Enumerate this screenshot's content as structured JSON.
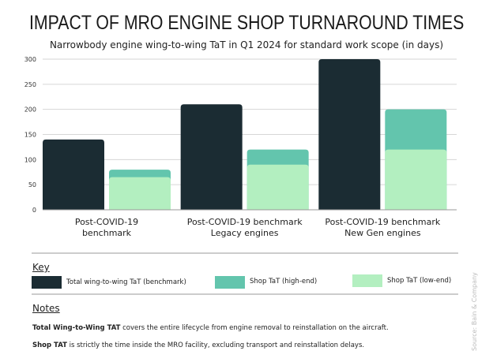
{
  "title": "IMPACT OF MRO ENGINE SHOP TURNAROUND TIMES",
  "subtitle": "Narrowbody engine wing-to-wing TaT in Q1 2024 for standard work scope (in days)",
  "chart_data": {
    "type": "bar",
    "title": "IMPACT OF MRO ENGINE SHOP TURNAROUND TIMES",
    "subtitle": "Narrowbody engine wing-to-wing TaT in Q1 2024 for standard work scope (in days)",
    "categories": [
      [
        "Post-COVID-19",
        "benchmark"
      ],
      [
        "Post-COVID-19 benchmark",
        "Legacy engines"
      ],
      [
        "Post-COVID-19 benchmark",
        "New Gen engines"
      ]
    ],
    "series": [
      {
        "name": "Total wing-to-wing TaT (benchmark)",
        "values": [
          140,
          210,
          300
        ],
        "color": "#1b2c33"
      },
      {
        "name": "Shop TaT (high-end)",
        "values": [
          80,
          120,
          200
        ],
        "color": "#63c5ad"
      },
      {
        "name": "Shop TaT (low-end)",
        "values": [
          65,
          90,
          120
        ],
        "color": "#b3efc0"
      }
    ],
    "yticks": [
      0,
      50,
      100,
      150,
      200,
      250,
      300
    ],
    "ylim": [
      0,
      300
    ],
    "grid": true,
    "legend": "bottom"
  },
  "key": {
    "heading": "Key"
  },
  "notes": {
    "heading": "Notes",
    "items": [
      {
        "bold": "Total Wing-to-Wing TAT",
        "text": " covers the entire lifecycle from engine removal to reinstallation on the aircraft."
      },
      {
        "bold": "Shop TAT",
        "text": " is strictly the time inside the MRO facility, excluding transport and reinstallation delays."
      }
    ]
  },
  "source": "Source:  Bain & Company"
}
